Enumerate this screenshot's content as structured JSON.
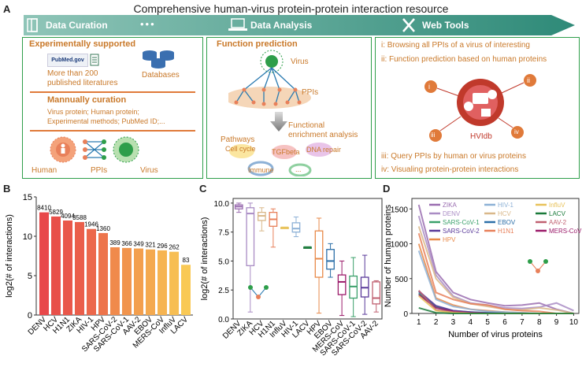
{
  "figure_title": "Comprehensive human-virus protein-protein interaction resource",
  "panels": {
    "a": "A",
    "b": "B",
    "c": "C",
    "d": "D"
  },
  "banner": {
    "step1": "Data Curation",
    "dots": "•••",
    "step2": "Data Analysis",
    "step3": "Web Tools"
  },
  "curation": {
    "exp_title": "Experimentally supported",
    "pubmed_logo": "PubMed.gov",
    "literature": "More than 200 published literatures",
    "lit_line1": "More than 200",
    "lit_line2": "published literatures",
    "databases": "Databases",
    "manual_title": "Mannually curation",
    "fields_line1": "Virus protein; Human protein;",
    "fields_line2": "Experimental methods; PubMed ID;...",
    "human": "Human",
    "ppis": "PPIs",
    "virus": "Virus"
  },
  "function": {
    "title": "Function prediction",
    "virus": "Virus",
    "ppis": "PPIs",
    "enrich_line1": "Functional",
    "enrich_line2": "enrichment analysis",
    "pathways": "Pathways",
    "cellcycle": "Cell cycle",
    "tgf": "TGFbeta",
    "dna": "DNA repair",
    "immune": "Immune",
    "ellipsis": "..."
  },
  "tools": {
    "i": "i: Browsing all PPIs of a virus of interesting",
    "ii": "ii: Function prediction based on human proteins",
    "iii": "iii: Query PPIs by human or virus proteins",
    "iv": "iv: Visualing protein-protein interactions",
    "hvidb": "HVIdb",
    "lab_i": "i",
    "lab_ii": "ii",
    "lab_iii": "iii",
    "lab_iv": "iv"
  },
  "chart_data": [
    {
      "type": "bar",
      "panel": "B",
      "ylabel": "log2(# of interactions)",
      "ylim": [
        0,
        15
      ],
      "yticks": [
        "0",
        "5",
        "10",
        "15"
      ],
      "categories": [
        "DENV",
        "HCV",
        "H1N1",
        "ZIKA",
        "HIV-1",
        "HPV",
        "SARS-CoV-2",
        "SARS-CoV-1",
        "AAV-2",
        "EBOV",
        "MERS-CoV",
        "InfluV",
        "LACV"
      ],
      "values": [
        8410,
        5829,
        4094,
        3588,
        1946,
        1360,
        389,
        366,
        349,
        321,
        296,
        262,
        83
      ],
      "value_labels": [
        "8410",
        "5829",
        "4094",
        "3588",
        "1946",
        "1360",
        "389",
        "366",
        "349",
        "321",
        "296",
        "262",
        "83"
      ],
      "colors": [
        "#e8484a",
        "#e8504a",
        "#e9574a",
        "#ea5e4a",
        "#ec684b",
        "#ed744b",
        "#f08a4c",
        "#f1944d",
        "#f39f4e",
        "#f4a94f",
        "#f6b451",
        "#f7be53",
        "#f9c955"
      ]
    },
    {
      "type": "box",
      "panel": "C",
      "ylabel": "log2(# of interactions)",
      "ylim": [
        0,
        10.4
      ],
      "yticks": [
        "0.0",
        "2.5",
        "5.0",
        "7.5",
        "10.0"
      ],
      "categories": [
        "DENV",
        "ZIKA",
        "HCV",
        "H1N1",
        "InfluV",
        "HIV-1",
        "LACV",
        "HPV",
        "EBOV",
        "MERS-CoV",
        "SARS-CoV-1",
        "SARS-CoV-2",
        "AAV-2"
      ],
      "colors": [
        "#9a6db0",
        "#a98cc4",
        "#d9b88a",
        "#e8805a",
        "#e8c25a",
        "#8db1d6",
        "#1a7a3a",
        "#e88a4a",
        "#2c6fa8",
        "#9b1b6a",
        "#3aa06a",
        "#5a3a9a",
        "#c06070"
      ],
      "boxes": [
        {
          "min": 9.2,
          "q1": 9.5,
          "median": 9.7,
          "q3": 9.85,
          "max": 10.0
        },
        {
          "min": 0.6,
          "q1": 4.6,
          "median": 9.1,
          "q3": 9.6,
          "max": 10.0
        },
        {
          "min": 7.6,
          "q1": 8.5,
          "median": 8.9,
          "q3": 9.2,
          "max": 9.6
        },
        {
          "min": 6.2,
          "q1": 8.0,
          "median": 8.6,
          "q3": 9.2,
          "max": 9.5
        },
        {
          "min": 7.9,
          "q1": 7.9,
          "median": 7.9,
          "q3": 7.9,
          "max": 7.9
        },
        {
          "min": 7.1,
          "q1": 7.5,
          "median": 7.8,
          "q3": 8.3,
          "max": 8.8
        },
        {
          "min": 6.2,
          "q1": 6.2,
          "median": 6.2,
          "q3": 6.2,
          "max": 6.2
        },
        {
          "min": 0.5,
          "q1": 3.6,
          "median": 5.2,
          "q3": 7.6,
          "max": 8.7
        },
        {
          "min": 3.6,
          "q1": 4.3,
          "median": 5.0,
          "q3": 6.0,
          "max": 6.5
        },
        {
          "min": 0.3,
          "q1": 2.1,
          "median": 3.2,
          "q3": 3.8,
          "max": 5.0
        },
        {
          "min": 0.2,
          "q1": 1.8,
          "median": 2.8,
          "q3": 3.7,
          "max": 5.3
        },
        {
          "min": 0.4,
          "q1": 1.9,
          "median": 2.7,
          "q3": 3.6,
          "max": 5.5
        },
        {
          "min": 0.6,
          "q1": 1.3,
          "median": 1.8,
          "q3": 3.2,
          "max": 3.3
        }
      ]
    },
    {
      "type": "line",
      "panel": "D",
      "xlabel": "Number of virus proteins",
      "ylabel": "Number of human proteins",
      "xlim": [
        0.6,
        10.3
      ],
      "ylim": [
        0,
        1650
      ],
      "yticks": [
        "0",
        "500",
        "1000",
        "1500"
      ],
      "x": [
        1,
        2,
        3,
        4,
        5,
        6,
        7,
        8,
        9,
        10
      ],
      "legend": [
        "ZIKA",
        "HIV-1",
        "InfluV",
        "DENV",
        "HCV",
        "LACV",
        "SARS-CoV-1",
        "EBOV",
        "AAV-2",
        "SARS-CoV-2",
        "H1N1",
        "MERS-CoV",
        "HPV"
      ],
      "series": [
        {
          "name": "ZIKA",
          "color": "#9a6db0",
          "values": [
            1560,
            600,
            300,
            200,
            150,
            110,
            120,
            150,
            60,
            0
          ]
        },
        {
          "name": "DENV",
          "color": "#a98cc4",
          "values": [
            1400,
            550,
            250,
            150,
            120,
            80,
            70,
            90,
            150,
            40
          ]
        },
        {
          "name": "HCV",
          "color": "#d9b88a",
          "values": [
            1250,
            500,
            230,
            140,
            100,
            60,
            50,
            80,
            50,
            0
          ]
        },
        {
          "name": "H1N1",
          "color": "#e8805a",
          "values": [
            1150,
            300,
            200,
            140,
            120,
            60,
            40,
            30,
            0,
            0
          ]
        },
        {
          "name": "HPV",
          "color": "#e88a4a",
          "values": [
            1000,
            220,
            120,
            60,
            40,
            20,
            10,
            0,
            0,
            0
          ]
        },
        {
          "name": "HIV-1",
          "color": "#8db1d6",
          "values": [
            900,
            200,
            100,
            60,
            30,
            20,
            10,
            0,
            0,
            0
          ]
        },
        {
          "name": "EBOV",
          "color": "#2c6fa8",
          "values": [
            300,
            100,
            40,
            20,
            10,
            0,
            0,
            0,
            0,
            0
          ]
        },
        {
          "name": "SARS-CoV-1",
          "color": "#3aa06a",
          "values": [
            280,
            90,
            30,
            10,
            0,
            0,
            0,
            0,
            0,
            0
          ]
        },
        {
          "name": "SARS-CoV-2",
          "color": "#5a3a9a",
          "values": [
            320,
            110,
            40,
            20,
            5,
            0,
            0,
            0,
            0,
            0
          ]
        },
        {
          "name": "MERS-CoV",
          "color": "#9b1b6a",
          "values": [
            270,
            80,
            30,
            10,
            0,
            0,
            0,
            0,
            0,
            0
          ]
        },
        {
          "name": "AAV-2",
          "color": "#c06070",
          "values": [
            330,
            50,
            20,
            5,
            0,
            0,
            0,
            0,
            0,
            0
          ]
        },
        {
          "name": "InfluV",
          "color": "#e8c25a",
          "values": [
            250,
            40,
            10,
            0,
            0,
            0,
            0,
            0,
            0,
            0
          ]
        },
        {
          "name": "LACV",
          "color": "#1a7a3a",
          "values": [
            80,
            10,
            0,
            0,
            0,
            0,
            0,
            0,
            0,
            0
          ]
        }
      ]
    }
  ]
}
